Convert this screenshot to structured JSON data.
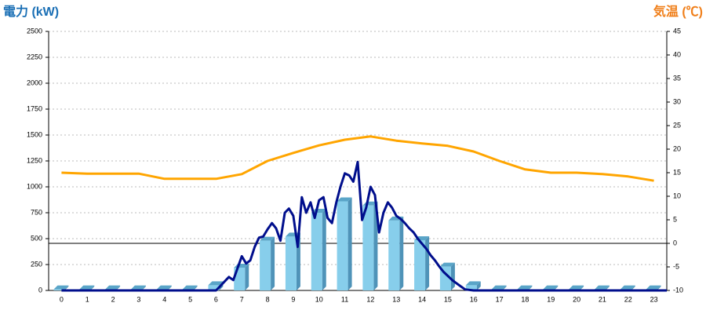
{
  "chart_data": {
    "type": "combo",
    "y_title": "電力 (kW)",
    "y2_title": "気温 (℃)",
    "categories": [
      "0",
      "1",
      "2",
      "3",
      "4",
      "5",
      "6",
      "7",
      "8",
      "9",
      "10",
      "11",
      "12",
      "13",
      "14",
      "15",
      "16",
      "17",
      "18",
      "19",
      "20",
      "21",
      "22",
      "23"
    ],
    "xlim": [
      -0.5,
      23.5
    ],
    "ylim": [
      0,
      2500
    ],
    "yticks": [
      0,
      250,
      500,
      750,
      1000,
      1250,
      1500,
      1750,
      2000,
      2250,
      2500
    ],
    "y2lim": [
      -10,
      45
    ],
    "y2ticks": [
      -10,
      -5,
      0,
      5,
      10,
      15,
      20,
      25,
      30,
      35,
      40,
      45
    ],
    "y2_refline": 0,
    "grid": true,
    "series": [
      {
        "type": "bar",
        "color": "#87ceeb",
        "values": [
          10,
          10,
          10,
          10,
          10,
          10,
          50,
          220,
          480,
          520,
          750,
          860,
          820,
          675,
          485,
          230,
          50,
          10,
          10,
          10,
          10,
          10,
          10,
          10
        ]
      },
      {
        "type": "line",
        "color": "#000e8c",
        "x": [
          0,
          6,
          6.5,
          6.67,
          7,
          7.17,
          7.33,
          7.5,
          7.67,
          7.83,
          8,
          8.17,
          8.33,
          8.5,
          8.67,
          8.83,
          9,
          9.17,
          9.33,
          9.5,
          9.67,
          9.83,
          10,
          10.17,
          10.33,
          10.5,
          10.67,
          10.83,
          11,
          11.17,
          11.33,
          11.5,
          11.67,
          11.83,
          12,
          12.17,
          12.33,
          12.5,
          12.67,
          12.83,
          13,
          13.17,
          13.33,
          13.5,
          13.67,
          13.83,
          14,
          14.17,
          14.33,
          14.5,
          14.67,
          14.83,
          15,
          15.17,
          15.33,
          15.5,
          15.67,
          16,
          23.5
        ],
        "values": [
          0,
          0,
          130,
          100,
          330,
          260,
          290,
          420,
          510,
          520,
          590,
          650,
          600,
          480,
          750,
          790,
          720,
          420,
          900,
          750,
          850,
          700,
          870,
          900,
          700,
          650,
          850,
          1000,
          1130,
          1110,
          1050,
          1240,
          680,
          800,
          1000,
          920,
          560,
          750,
          850,
          800,
          720,
          690,
          650,
          600,
          560,
          500,
          450,
          400,
          340,
          290,
          230,
          180,
          140,
          100,
          70,
          40,
          10,
          0,
          0
        ]
      },
      {
        "type": "line",
        "axis": "y2",
        "color": "#ffa500",
        "values": [
          15,
          14.8,
          14.8,
          14.8,
          13.7,
          13.7,
          13.7,
          14.7,
          17.5,
          19.2,
          20.8,
          22,
          22.7,
          21.8,
          21.2,
          20.7,
          19.5,
          17.5,
          15.7,
          15,
          15,
          14.7,
          14.2,
          13.3
        ]
      }
    ]
  }
}
